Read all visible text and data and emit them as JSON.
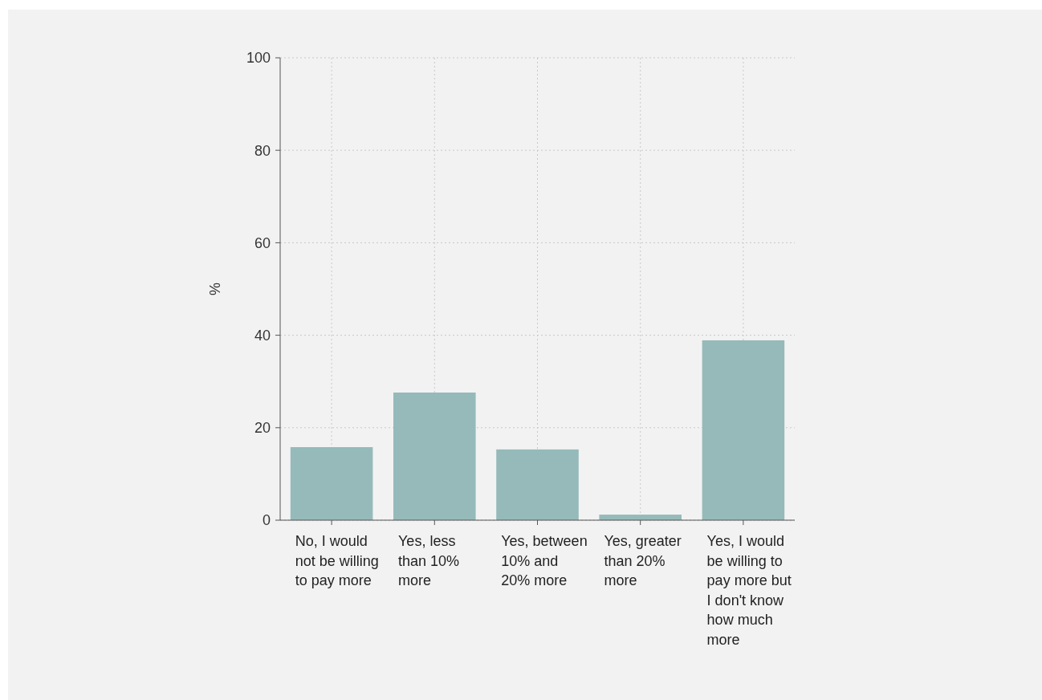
{
  "chart_data": {
    "type": "bar",
    "ylabel": "%",
    "categories": [
      "No, I would not be willing to pay more",
      "Yes, less than 10% more",
      "Yes, between 10% and 20% more",
      "Yes, greater than 20% more",
      "Yes, I would be willing to pay more but I don't know how much more"
    ],
    "values": [
      15.8,
      27.6,
      15.3,
      1.2,
      38.9
    ],
    "color": "#95bab9",
    "ylim": [
      0,
      100
    ],
    "yticks": [
      0,
      20,
      40,
      60,
      80,
      100
    ],
    "grid": true
  }
}
